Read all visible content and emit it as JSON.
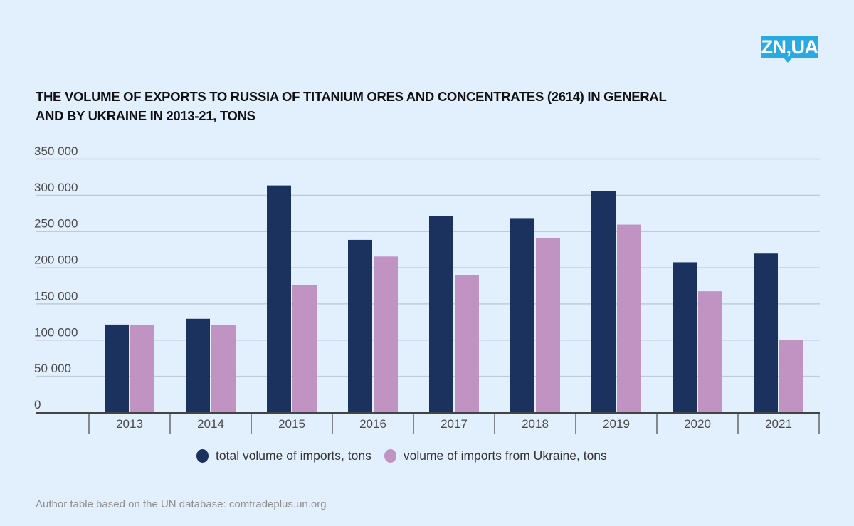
{
  "brand": {
    "logo_text": "ZN,UA",
    "logo_color": "#2aaae2"
  },
  "chart_data": {
    "type": "bar",
    "title": "THE VOLUME OF EXPORTS TO RUSSIA OF TITANIUM ORES AND CONCENTRATES (2614) IN GENERAL AND BY UKRAINE IN 2013-21, TONS",
    "xlabel": "",
    "ylabel": "",
    "categories": [
      "2013",
      "2014",
      "2015",
      "2016",
      "2017",
      "2018",
      "2019",
      "2020",
      "2021"
    ],
    "series": [
      {
        "name": "total volume of imports, tons",
        "color": "#1c325e",
        "values": [
          121000,
          129000,
          313000,
          238000,
          271000,
          268000,
          305000,
          207000,
          219000
        ]
      },
      {
        "name": "volume of imports from Ukraine, tons",
        "color": "#c193c2",
        "values": [
          120000,
          120000,
          176000,
          215000,
          189000,
          240000,
          259000,
          167000,
          100000
        ]
      }
    ],
    "ylim": [
      0,
      350000
    ],
    "yticks": [
      0,
      50000,
      100000,
      150000,
      200000,
      250000,
      300000,
      350000
    ],
    "ytick_labels": [
      "0",
      "50 000",
      "100 000",
      "150 000",
      "200 000",
      "250 000",
      "300 000",
      "350 000"
    ],
    "grid": true,
    "legend_position": "bottom-center"
  },
  "source": "Author table based on the UN database: comtradeplus.un.org"
}
